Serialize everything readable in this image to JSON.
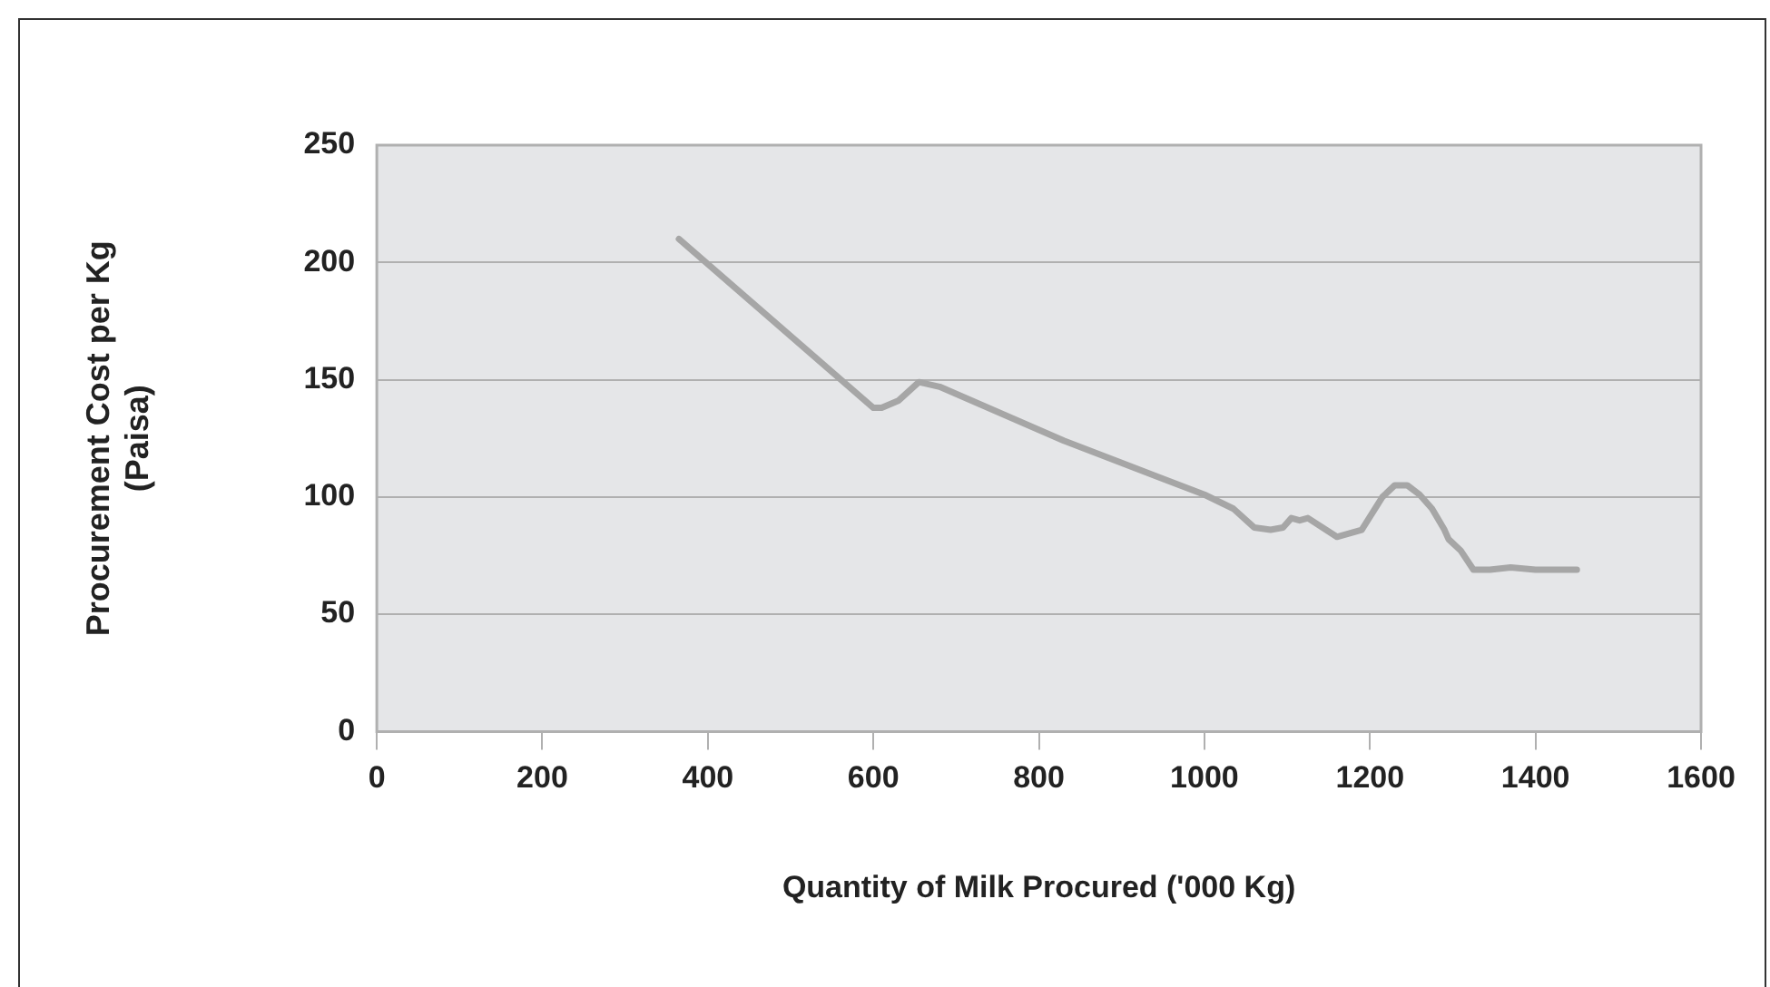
{
  "chart_data": {
    "type": "line",
    "xlabel": "Quantity of Milk Procured ('000 Kg)",
    "ylabel": "Procurement Cost per Kg\n(Paisa)",
    "x": [
      365,
      600,
      610,
      630,
      655,
      680,
      830,
      1000,
      1035,
      1060,
      1080,
      1095,
      1105,
      1115,
      1125,
      1160,
      1190,
      1215,
      1230,
      1245,
      1260,
      1275,
      1290,
      1295,
      1310,
      1325,
      1345,
      1370,
      1400,
      1450
    ],
    "series": [
      {
        "color": "#a6a6a6",
        "values": [
          210,
          138,
          138,
          141,
          149,
          147,
          124,
          101,
          95,
          87,
          86,
          87,
          91,
          90,
          91,
          83,
          86,
          100,
          105,
          105,
          101,
          95,
          86,
          82,
          77,
          69,
          69,
          70,
          69,
          69
        ]
      }
    ],
    "xlim": [
      0,
      1600
    ],
    "xticks": [
      0,
      200,
      400,
      600,
      800,
      1000,
      1200,
      1400,
      1600
    ],
    "ylim": [
      0,
      250
    ],
    "yticks": [
      0,
      50,
      100,
      150,
      200,
      250
    ],
    "grid": "y",
    "legend": false,
    "marker": "none",
    "line_style": "solid"
  }
}
